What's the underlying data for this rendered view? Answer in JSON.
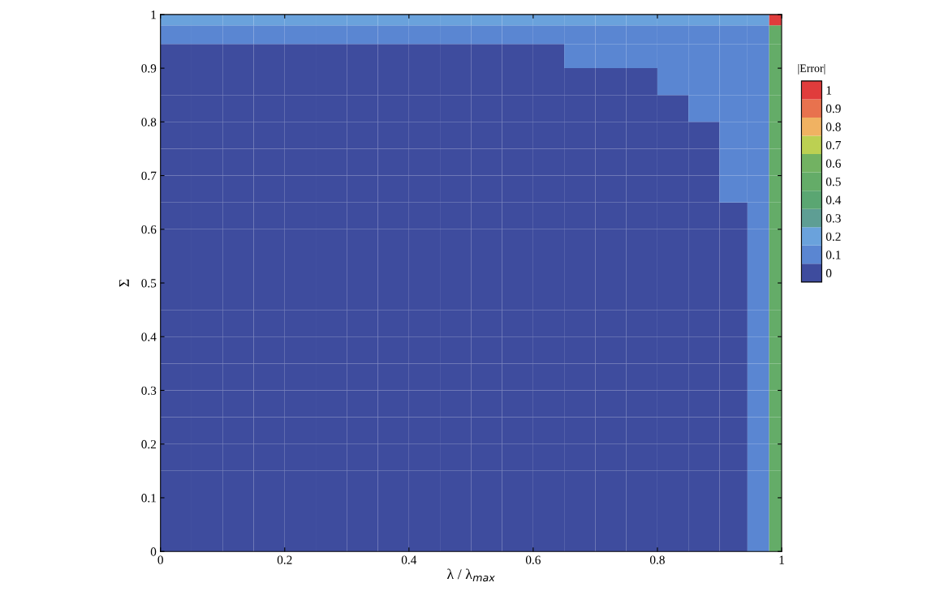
{
  "chart_data": {
    "type": "heatmap",
    "xlabel": "λ / λ$_{max}$",
    "ylabel": "Σ",
    "clabel": "|Error|",
    "x": [
      0.025,
      0.075,
      0.125,
      0.175,
      0.225,
      0.275,
      0.325,
      0.375,
      0.425,
      0.475,
      0.525,
      0.575,
      0.625,
      0.675,
      0.725,
      0.775,
      0.825,
      0.875,
      0.925,
      0.965,
      0.995
    ],
    "y": [
      0.995,
      0.965,
      0.925,
      0.875,
      0.825,
      0.775,
      0.725,
      0.675,
      0.625,
      0.575,
      0.525,
      0.475,
      0.425,
      0.375,
      0.325,
      0.275,
      0.225,
      0.175,
      0.125,
      0.075,
      0.025
    ],
    "cells": [
      [
        0.2,
        0.2,
        0.2,
        0.2,
        0.2,
        0.2,
        0.2,
        0.2,
        0.2,
        0.2,
        0.2,
        0.2,
        0.2,
        0.2,
        0.2,
        0.2,
        0.2,
        0.2,
        0.2,
        0.2,
        1
      ],
      [
        0.1,
        0.1,
        0.1,
        0.1,
        0.1,
        0.1,
        0.1,
        0.1,
        0.1,
        0.1,
        0.1,
        0.1,
        0.1,
        0.1,
        0.1,
        0.1,
        0.1,
        0.1,
        0.1,
        0.1,
        0.5
      ],
      [
        0,
        0,
        0,
        0,
        0,
        0,
        0,
        0,
        0,
        0,
        0,
        0,
        0,
        0.1,
        0.1,
        0.1,
        0.1,
        0.1,
        0.1,
        0.1,
        0.5
      ],
      [
        0,
        0,
        0,
        0,
        0,
        0,
        0,
        0,
        0,
        0,
        0,
        0,
        0,
        0,
        0,
        0,
        0.1,
        0.1,
        0.1,
        0.1,
        0.5
      ],
      [
        0,
        0,
        0,
        0,
        0,
        0,
        0,
        0,
        0,
        0,
        0,
        0,
        0,
        0,
        0,
        0,
        0,
        0.1,
        0.1,
        0.1,
        0.5
      ],
      [
        0,
        0,
        0,
        0,
        0,
        0,
        0,
        0,
        0,
        0,
        0,
        0,
        0,
        0,
        0,
        0,
        0,
        0,
        0.1,
        0.1,
        0.5
      ],
      [
        0,
        0,
        0,
        0,
        0,
        0,
        0,
        0,
        0,
        0,
        0,
        0,
        0,
        0,
        0,
        0,
        0,
        0,
        0.1,
        0.1,
        0.5
      ],
      [
        0,
        0,
        0,
        0,
        0,
        0,
        0,
        0,
        0,
        0,
        0,
        0,
        0,
        0,
        0,
        0,
        0,
        0,
        0.1,
        0.1,
        0.5
      ],
      [
        0,
        0,
        0,
        0,
        0,
        0,
        0,
        0,
        0,
        0,
        0,
        0,
        0,
        0,
        0,
        0,
        0,
        0,
        0,
        0.1,
        0.5
      ],
      [
        0,
        0,
        0,
        0,
        0,
        0,
        0,
        0,
        0,
        0,
        0,
        0,
        0,
        0,
        0,
        0,
        0,
        0,
        0,
        0.1,
        0.5
      ],
      [
        0,
        0,
        0,
        0,
        0,
        0,
        0,
        0,
        0,
        0,
        0,
        0,
        0,
        0,
        0,
        0,
        0,
        0,
        0,
        0.1,
        0.5
      ],
      [
        0,
        0,
        0,
        0,
        0,
        0,
        0,
        0,
        0,
        0,
        0,
        0,
        0,
        0,
        0,
        0,
        0,
        0,
        0,
        0.1,
        0.5
      ],
      [
        0,
        0,
        0,
        0,
        0,
        0,
        0,
        0,
        0,
        0,
        0,
        0,
        0,
        0,
        0,
        0,
        0,
        0,
        0,
        0.1,
        0.5
      ],
      [
        0,
        0,
        0,
        0,
        0,
        0,
        0,
        0,
        0,
        0,
        0,
        0,
        0,
        0,
        0,
        0,
        0,
        0,
        0,
        0.1,
        0.5
      ],
      [
        0,
        0,
        0,
        0,
        0,
        0,
        0,
        0,
        0,
        0,
        0,
        0,
        0,
        0,
        0,
        0,
        0,
        0,
        0,
        0.1,
        0.5
      ],
      [
        0,
        0,
        0,
        0,
        0,
        0,
        0,
        0,
        0,
        0,
        0,
        0,
        0,
        0,
        0,
        0,
        0,
        0,
        0,
        0.1,
        0.5
      ],
      [
        0,
        0,
        0,
        0,
        0,
        0,
        0,
        0,
        0,
        0,
        0,
        0,
        0,
        0,
        0,
        0,
        0,
        0,
        0,
        0.1,
        0.5
      ],
      [
        0,
        0,
        0,
        0,
        0,
        0,
        0,
        0,
        0,
        0,
        0,
        0,
        0,
        0,
        0,
        0,
        0,
        0,
        0,
        0.1,
        0.5
      ],
      [
        0,
        0,
        0,
        0,
        0,
        0,
        0,
        0,
        0,
        0,
        0,
        0,
        0,
        0,
        0,
        0,
        0,
        0,
        0,
        0.1,
        0.5
      ],
      [
        0,
        0,
        0,
        0,
        0,
        0,
        0,
        0,
        0,
        0,
        0,
        0,
        0,
        0,
        0,
        0,
        0,
        0,
        0,
        0.1,
        0.5
      ],
      [
        0,
        0,
        0,
        0,
        0,
        0,
        0,
        0,
        0,
        0,
        0,
        0,
        0,
        0,
        0,
        0,
        0,
        0,
        0,
        0.1,
        0.5
      ]
    ],
    "colors": [
      "#3e4c9e",
      "#5a86d2",
      "#6aa2dc",
      "#5e9e94",
      "#5aa672",
      "#64ac68",
      "#72b262",
      "#bcd052",
      "#f0b262",
      "#e8724e",
      "#e03c3c"
    ],
    "clim": [
      -0.05,
      1.05
    ],
    "cticks": [
      0,
      0.1,
      0.2,
      0.3,
      0.4,
      0.5,
      0.6,
      0.7,
      0.8,
      0.9,
      1
    ],
    "xlim": [
      0,
      1
    ],
    "ylim": [
      0,
      1
    ],
    "xticks": [
      0,
      0.2,
      0.4,
      0.6,
      0.8,
      1
    ],
    "yticks": [
      0,
      0.1,
      0.2,
      0.3,
      0.4,
      0.5,
      0.6,
      0.7,
      0.8,
      0.9,
      1
    ],
    "grid": false
  }
}
